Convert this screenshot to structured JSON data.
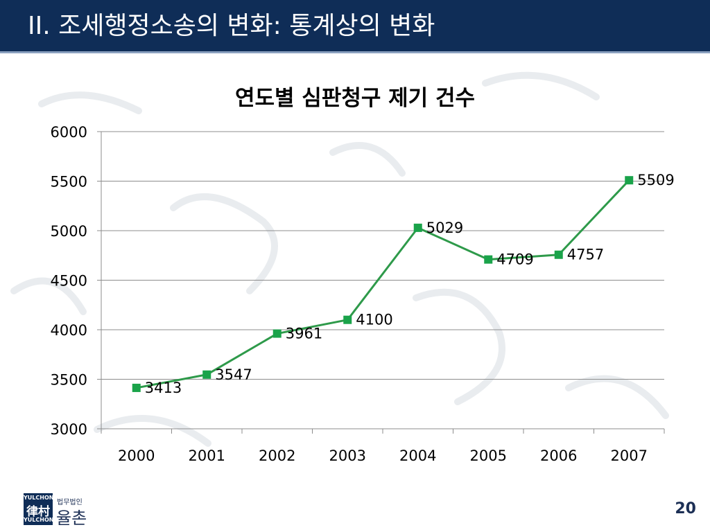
{
  "slide": {
    "title": "II. 조세행정소송의 변화: 통계상의 변화",
    "page_number": "20"
  },
  "logo": {
    "box_top": "YULCHON",
    "box_glyph": "律村",
    "box_bottom": "YULCHON",
    "small_text": "법무법인",
    "name": "율촌"
  },
  "colors": {
    "header": "#0f2d57",
    "series_line": "#2e9a4a",
    "marker": "#1aa34a",
    "gridline": "#8c8c8c"
  },
  "chart_data": {
    "type": "line",
    "title": "연도별 심판청구 제기 건수",
    "xlabel": "",
    "ylabel": "",
    "categories": [
      "2000",
      "2001",
      "2002",
      "2003",
      "2004",
      "2005",
      "2006",
      "2007"
    ],
    "series": [
      {
        "values": [
          3413,
          3547,
          3961,
          4100,
          5029,
          4709,
          4757,
          5509
        ]
      }
    ],
    "data_labels": [
      "3413",
      "3547",
      "3961",
      "4100",
      "5029",
      "4709",
      "4757",
      "5509"
    ],
    "ylim": [
      3000,
      6000
    ],
    "yticks": [
      "3000",
      "3500",
      "4000",
      "4500",
      "5000",
      "5500",
      "6000"
    ],
    "grid": true,
    "legend": "none",
    "marker": "square"
  }
}
